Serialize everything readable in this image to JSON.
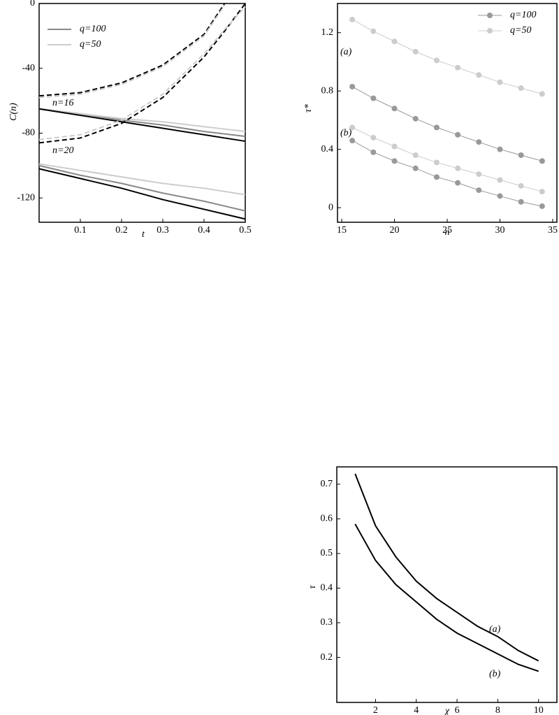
{
  "chart_data": [
    {
      "type": "line",
      "xlabel": "t",
      "ylabel": "C(n)",
      "x": [
        0,
        0.1,
        0.2,
        0.3,
        0.4,
        0.45,
        0.5
      ],
      "xlim": [
        0,
        0.5
      ],
      "ylim": [
        -135,
        0
      ],
      "xticks": [
        0.1,
        0.2,
        0.3,
        0.4,
        0.5
      ],
      "yticks": [
        0,
        -40,
        -80,
        -120
      ],
      "legend": "upper left",
      "annotations": [
        "n=16",
        "n=20"
      ],
      "series": [
        {
          "name": "q=100",
          "color": "#888888",
          "values": [
            -65,
            -68,
            -72,
            -75,
            -79,
            -80.5,
            -82
          ]
        },
        {
          "name": "q=50",
          "color": "#cccccc",
          "values": [
            -65,
            -68,
            -71,
            -73,
            -76,
            -77.5,
            -79
          ]
        },
        {
          "color": "#000000",
          "values": [
            -65,
            -69,
            -73,
            -77,
            -81,
            -83,
            -85
          ]
        },
        {
          "color": "#888888",
          "values": [
            -100,
            -106,
            -111,
            -117,
            -122,
            -125,
            -128
          ]
        },
        {
          "color": "#cccccc",
          "values": [
            -99,
            -103,
            -107,
            -111,
            -114,
            -116,
            -118
          ]
        },
        {
          "color": "#000000",
          "values": [
            -102,
            -108,
            -114,
            -121,
            -127,
            -130,
            -133
          ]
        },
        {
          "color": "#000000",
          "dashed": true,
          "values": [
            -57,
            -55,
            -49,
            -38,
            -19,
            0,
            null
          ]
        },
        {
          "color": "#cccccc",
          "dashed": true,
          "values": [
            -58,
            -56,
            -50,
            -39,
            -20,
            -1,
            null
          ]
        },
        {
          "color": "#000000",
          "dashed": true,
          "values": [
            -86,
            -83,
            -74,
            -58,
            -33,
            -17,
            0
          ]
        },
        {
          "color": "#cccccc",
          "dashed": true,
          "values": [
            -84,
            -81,
            -72,
            -56,
            -31,
            -16,
            -2
          ]
        }
      ]
    },
    {
      "type": "line",
      "xlabel": "n",
      "ylabel": "τ*",
      "markers": true,
      "x": [
        16,
        18,
        20,
        22,
        24,
        26,
        28,
        30,
        32,
        34
      ],
      "xlim": [
        14.6,
        35.4
      ],
      "ylim": [
        -0.1,
        1.4
      ],
      "xticks": [
        15,
        20,
        25,
        30,
        35
      ],
      "yticks": [
        0,
        0.4,
        0.8,
        1.2
      ],
      "legend": "upper right",
      "annotations": [
        "(a)",
        "(b)"
      ],
      "series": [
        {
          "name": "q=100",
          "color": "#999999",
          "values": [
            0.83,
            0.75,
            0.68,
            0.61,
            0.55,
            0.5,
            0.45,
            0.4,
            0.36,
            0.32
          ]
        },
        {
          "name": "q=50",
          "color": "#cccccc",
          "values": [
            1.29,
            1.21,
            1.14,
            1.07,
            1.01,
            0.96,
            0.91,
            0.86,
            0.82,
            0.78
          ]
        },
        {
          "color": "#999999",
          "values": [
            0.46,
            0.38,
            0.32,
            0.27,
            0.21,
            0.17,
            0.12,
            0.08,
            0.04,
            0.01
          ]
        },
        {
          "color": "#cccccc",
          "values": [
            0.55,
            0.48,
            0.42,
            0.36,
            0.31,
            0.27,
            0.23,
            0.19,
            0.15,
            0.11
          ]
        }
      ]
    },
    {
      "type": "line",
      "xlabel": "χ",
      "ylabel": "τ",
      "x": [
        1,
        2,
        3,
        4,
        5,
        6,
        7,
        8,
        9,
        10
      ],
      "xlim": [
        0.1,
        10.9
      ],
      "ylim": [
        0.07,
        0.75
      ],
      "xticks": [
        2,
        4,
        6,
        8,
        10
      ],
      "yticks": [
        0.2,
        0.3,
        0.4,
        0.5,
        0.6,
        0.7
      ],
      "annotations": [
        "(a)",
        "(b)"
      ],
      "series": [
        {
          "color": "#000000",
          "values": [
            0.73,
            0.58,
            0.49,
            0.42,
            0.37,
            0.33,
            0.29,
            0.26,
            0.22,
            0.19
          ]
        },
        {
          "color": "#000000",
          "values": [
            0.585,
            0.48,
            0.41,
            0.36,
            0.31,
            0.27,
            0.24,
            0.21,
            0.18,
            0.16
          ]
        }
      ]
    }
  ]
}
